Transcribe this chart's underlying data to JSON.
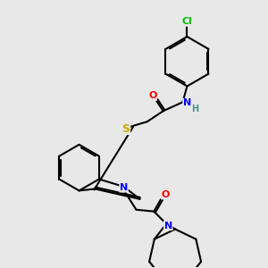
{
  "bg_color": "#e8e8e8",
  "atom_colors": {
    "O": "#ff0000",
    "N": "#0000ff",
    "S": "#ccaa00",
    "Cl": "#00bb00",
    "C": "#000000",
    "H": "#4a9090"
  },
  "figsize": [
    3.0,
    3.0
  ],
  "dpi": 100,
  "lw": 1.5,
  "doff": 2.5
}
